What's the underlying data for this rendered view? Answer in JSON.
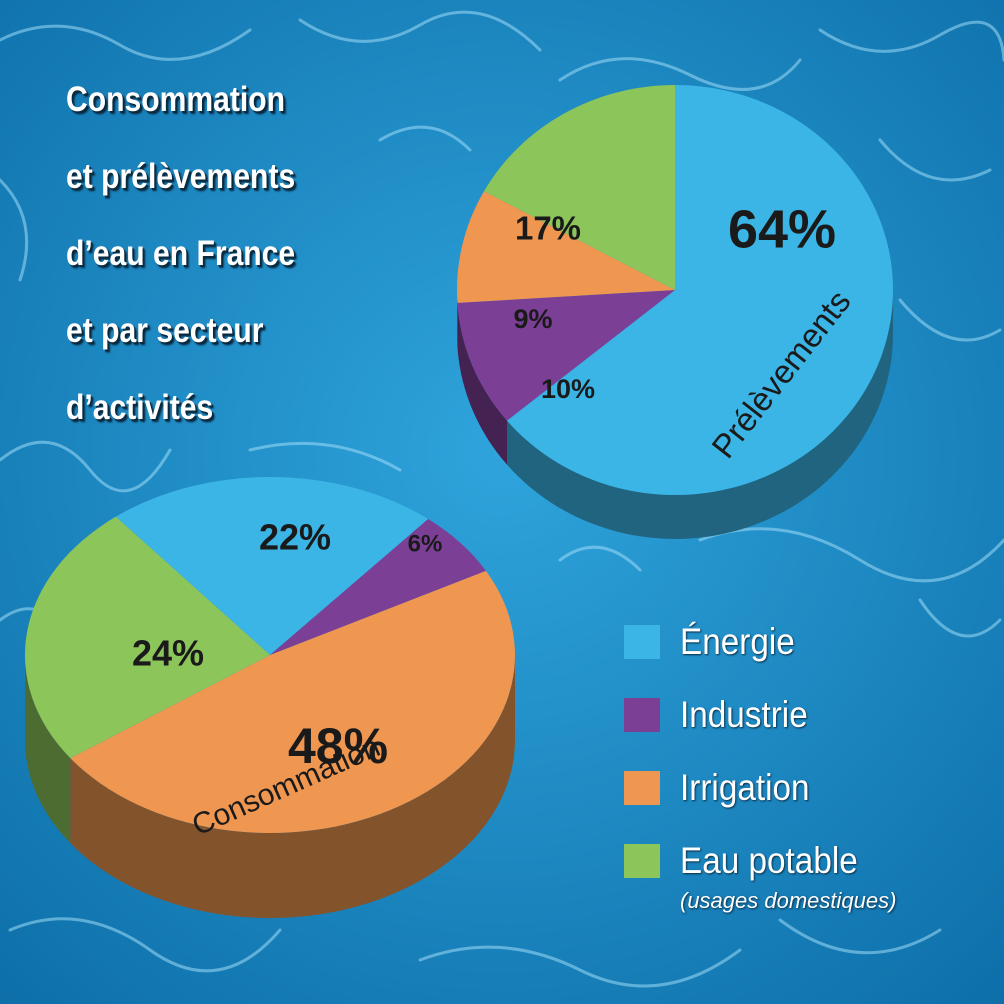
{
  "title_lines": [
    "Consommation",
    "et prélèvements",
    "d’eau en France",
    "et par secteur",
    "d’activités"
  ],
  "colors": {
    "energie": "#3ab5e6",
    "industrie": "#7b3f96",
    "irrigation": "#ef9650",
    "eau_potable": "#8cc55a",
    "water_dark": "#0d6ea8",
    "water_light": "#2fa4dc"
  },
  "legend": {
    "items": [
      {
        "label": "Énergie",
        "color": "#3ab5e6"
      },
      {
        "label": "Industrie",
        "color": "#7b3f96"
      },
      {
        "label": "Irrigation",
        "color": "#ef9650"
      },
      {
        "label": "Eau potable",
        "color": "#8cc55a"
      }
    ],
    "note": "(usages domestiques)"
  },
  "chart_data": [
    {
      "type": "pie",
      "name": "Prélèvements",
      "categories": [
        "Énergie",
        "Industrie",
        "Irrigation",
        "Eau potable"
      ],
      "values": [
        64,
        10,
        9,
        17
      ],
      "labels": [
        "64%",
        "10%",
        "9%",
        "17%"
      ]
    },
    {
      "type": "pie",
      "name": "Consommation",
      "categories": [
        "Énergie",
        "Industrie",
        "Irrigation",
        "Eau potable"
      ],
      "values": [
        22,
        6,
        48,
        24
      ],
      "labels": [
        "22%",
        "6%",
        "48%",
        "24%"
      ]
    }
  ]
}
